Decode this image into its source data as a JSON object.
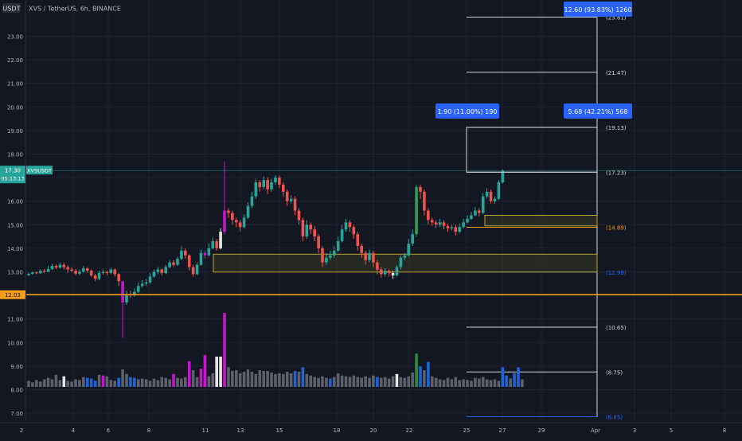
{
  "header": {
    "currency": "USDT",
    "symbol_text": "XVS / TetherUS, 6h, BINANCE"
  },
  "chart_data": {
    "type": "candlestick",
    "ylim": [
      6.5,
      24.5
    ],
    "y_ticks": [
      "23.00",
      "22.00",
      "21.00",
      "20.00",
      "19.00",
      "18.00",
      "17.00",
      "16.00",
      "15.00",
      "14.00",
      "13.00",
      "11.00",
      "10.00",
      "9.00",
      "8.00",
      "7.00"
    ],
    "x_ticks": [
      "2",
      "4",
      "6",
      "8",
      "11",
      "13",
      "15",
      "18",
      "20",
      "22",
      "25",
      "27",
      "29",
      "Apr",
      "3",
      "5",
      "8"
    ],
    "current_price": {
      "value": 17.3,
      "label": "17.30",
      "ticker": "XVSUSDT",
      "countdown": "05:13:13"
    },
    "support_line": {
      "value": 12.03,
      "label": "12.03"
    },
    "levels": [
      {
        "value": 23.81,
        "label": "(23.81)"
      },
      {
        "value": 21.47,
        "label": "(21.47)"
      },
      {
        "value": 19.13,
        "label": "(19.13)"
      },
      {
        "value": 17.23,
        "label": "(17.23)"
      },
      {
        "value": 14.89,
        "label": "(14.89)"
      },
      {
        "value": 12.99,
        "label": "(12.99)"
      },
      {
        "value": 10.65,
        "label": "(10.65)"
      },
      {
        "value": 8.75,
        "label": "(8.75)"
      },
      {
        "value": 6.85,
        "label": "(6.85)"
      }
    ],
    "zones": [
      {
        "name": "demand-zone",
        "low": 12.99,
        "high": 13.75
      },
      {
        "name": "retest-zone",
        "low": 14.95,
        "high": 15.4
      }
    ],
    "annotations": [
      {
        "text": "12.60 (93.83%) 1260"
      },
      {
        "text": "1.90 (11.00%) 190"
      },
      {
        "text": "5.68 (42.21%) 568"
      }
    ],
    "candles": [
      [
        12.86,
        12.92,
        12.95,
        12.82
      ],
      [
        12.92,
        12.98,
        13.02,
        12.88
      ],
      [
        12.98,
        12.94,
        13.02,
        12.9
      ],
      [
        12.94,
        13.05,
        13.1,
        12.92
      ],
      [
        13.05,
        13.0,
        13.12,
        12.95
      ],
      [
        13.0,
        13.12,
        13.25,
        12.98
      ],
      [
        13.12,
        13.25,
        13.35,
        13.08
      ],
      [
        13.25,
        13.18,
        13.32,
        13.12
      ],
      [
        13.18,
        13.3,
        13.4,
        13.15
      ],
      [
        13.3,
        13.2,
        13.38,
        13.1
      ],
      [
        13.2,
        13.1,
        13.28,
        12.95
      ],
      [
        13.1,
        13.05,
        13.2,
        12.98
      ],
      [
        13.05,
        12.92,
        13.12,
        12.85
      ],
      [
        12.92,
        13.0,
        13.1,
        12.85
      ],
      [
        13.0,
        13.15,
        13.25,
        12.95
      ],
      [
        13.15,
        13.05,
        13.2,
        12.95
      ],
      [
        13.05,
        12.85,
        13.1,
        12.78
      ],
      [
        12.85,
        12.7,
        12.92,
        12.6
      ],
      [
        12.7,
        12.95,
        13.05,
        12.65
      ],
      [
        12.95,
        13.0,
        13.1,
        12.88
      ],
      [
        13.0,
        12.95,
        13.05,
        12.85
      ],
      [
        12.95,
        13.1,
        13.18,
        12.9
      ],
      [
        13.1,
        12.9,
        13.15,
        12.8
      ],
      [
        12.9,
        12.6,
        12.95,
        12.4
      ],
      [
        12.6,
        11.7,
        12.62,
        10.2
      ],
      [
        11.7,
        12.05,
        12.2,
        11.6
      ],
      [
        12.05,
        12.0,
        12.2,
        11.9
      ],
      [
        12.0,
        12.15,
        12.3,
        11.95
      ],
      [
        12.15,
        12.4,
        12.55,
        12.1
      ],
      [
        12.4,
        12.5,
        12.65,
        12.35
      ],
      [
        12.5,
        12.55,
        12.7,
        12.4
      ],
      [
        12.55,
        12.8,
        12.95,
        12.5
      ],
      [
        12.8,
        13.0,
        13.1,
        12.75
      ],
      [
        13.0,
        13.1,
        13.2,
        12.9
      ],
      [
        13.1,
        12.95,
        13.15,
        12.85
      ],
      [
        12.95,
        13.2,
        13.3,
        12.9
      ],
      [
        13.2,
        13.4,
        13.5,
        13.15
      ],
      [
        13.4,
        13.3,
        13.5,
        13.2
      ],
      [
        13.3,
        13.55,
        13.65,
        13.25
      ],
      [
        13.55,
        13.9,
        14.1,
        13.5
      ],
      [
        13.9,
        13.7,
        14.0,
        13.55
      ],
      [
        13.7,
        13.2,
        13.75,
        13.05
      ],
      [
        13.2,
        12.9,
        13.3,
        12.8
      ],
      [
        12.9,
        13.3,
        13.4,
        12.85
      ],
      [
        13.3,
        13.8,
        13.95,
        13.25
      ],
      [
        13.8,
        13.7,
        13.9,
        13.55
      ],
      [
        13.7,
        14.0,
        14.2,
        13.65
      ],
      [
        14.0,
        14.3,
        14.45,
        13.95
      ],
      [
        14.3,
        14.0,
        14.4,
        13.9
      ],
      [
        14.0,
        14.7,
        14.85,
        13.95
      ],
      [
        14.7,
        15.6,
        17.7,
        14.6
      ],
      [
        15.6,
        15.5,
        15.7,
        15.3
      ],
      [
        15.5,
        15.2,
        15.6,
        15.0
      ],
      [
        15.2,
        15.1,
        15.3,
        14.9
      ],
      [
        15.1,
        14.9,
        15.2,
        14.7
      ],
      [
        14.9,
        15.3,
        15.45,
        14.85
      ],
      [
        15.3,
        15.8,
        15.95,
        15.25
      ],
      [
        15.8,
        16.2,
        16.4,
        15.7
      ],
      [
        16.2,
        16.8,
        16.95,
        16.1
      ],
      [
        16.8,
        16.6,
        16.9,
        16.4
      ],
      [
        16.6,
        16.9,
        17.05,
        16.5
      ],
      [
        16.9,
        16.5,
        17.0,
        16.3
      ],
      [
        16.5,
        16.8,
        16.95,
        16.4
      ],
      [
        16.8,
        17.0,
        17.1,
        16.7
      ],
      [
        17.0,
        16.7,
        17.1,
        16.55
      ],
      [
        16.7,
        16.4,
        16.8,
        16.2
      ],
      [
        16.4,
        16.0,
        16.5,
        15.8
      ],
      [
        16.0,
        16.1,
        16.25,
        15.9
      ],
      [
        16.1,
        15.6,
        16.2,
        15.4
      ],
      [
        15.6,
        15.2,
        15.7,
        15.0
      ],
      [
        15.2,
        14.5,
        15.3,
        14.3
      ],
      [
        14.5,
        15.0,
        15.2,
        14.4
      ],
      [
        15.0,
        14.8,
        15.1,
        14.6
      ],
      [
        14.8,
        14.5,
        14.95,
        14.3
      ],
      [
        14.5,
        14.0,
        14.6,
        13.8
      ],
      [
        14.0,
        13.4,
        14.1,
        13.2
      ],
      [
        13.4,
        13.6,
        13.8,
        13.3
      ],
      [
        13.6,
        13.7,
        13.9,
        13.5
      ],
      [
        13.7,
        13.9,
        14.1,
        13.6
      ],
      [
        13.9,
        14.3,
        14.5,
        13.85
      ],
      [
        14.3,
        14.8,
        15.0,
        14.25
      ],
      [
        14.8,
        15.1,
        15.25,
        14.7
      ],
      [
        15.1,
        14.9,
        15.2,
        14.7
      ],
      [
        14.9,
        14.6,
        15.0,
        14.4
      ],
      [
        14.6,
        14.1,
        14.7,
        13.9
      ],
      [
        14.1,
        13.8,
        14.2,
        13.6
      ],
      [
        13.8,
        13.5,
        13.9,
        13.3
      ],
      [
        13.5,
        13.8,
        13.95,
        13.4
      ],
      [
        13.8,
        13.4,
        13.9,
        13.2
      ],
      [
        13.4,
        13.1,
        13.5,
        12.9
      ],
      [
        13.1,
        12.9,
        13.2,
        12.75
      ],
      [
        12.9,
        13.05,
        13.15,
        12.8
      ],
      [
        13.05,
        12.95,
        13.1,
        12.8
      ],
      [
        12.95,
        12.85,
        13.05,
        12.7
      ],
      [
        12.85,
        13.2,
        13.3,
        12.8
      ],
      [
        13.2,
        13.6,
        13.7,
        13.1
      ],
      [
        13.6,
        13.7,
        13.8,
        13.5
      ],
      [
        13.7,
        14.2,
        14.4,
        13.65
      ],
      [
        14.2,
        14.6,
        14.8,
        14.1
      ],
      [
        14.6,
        16.6,
        16.7,
        14.5
      ],
      [
        16.6,
        16.4,
        16.7,
        16.1
      ],
      [
        16.4,
        15.6,
        16.5,
        15.4
      ],
      [
        15.6,
        15.2,
        15.7,
        15.0
      ],
      [
        15.2,
        15.1,
        15.3,
        14.95
      ],
      [
        15.1,
        15.0,
        15.2,
        14.85
      ],
      [
        15.0,
        15.1,
        15.25,
        14.9
      ],
      [
        15.1,
        14.95,
        15.2,
        14.8
      ],
      [
        14.95,
        14.85,
        15.05,
        14.7
      ],
      [
        14.85,
        14.9,
        15.0,
        14.75
      ],
      [
        14.9,
        14.7,
        15.0,
        14.55
      ],
      [
        14.7,
        14.9,
        15.05,
        14.65
      ],
      [
        14.9,
        15.1,
        15.25,
        14.85
      ],
      [
        15.1,
        15.25,
        15.4,
        15.05
      ],
      [
        15.25,
        15.4,
        15.55,
        15.2
      ],
      [
        15.4,
        15.6,
        15.75,
        15.35
      ],
      [
        15.6,
        15.5,
        15.7,
        15.35
      ],
      [
        15.5,
        16.2,
        16.35,
        15.45
      ],
      [
        16.2,
        16.4,
        16.55,
        16.1
      ],
      [
        16.4,
        16.0,
        16.5,
        15.9
      ],
      [
        16.0,
        16.1,
        16.2,
        15.9
      ],
      [
        16.1,
        16.8,
        16.9,
        16.05
      ],
      [
        16.8,
        17.3,
        17.35,
        16.75
      ]
    ],
    "volumes": [
      [
        0.8,
        "gray"
      ],
      [
        0.6,
        "gray"
      ],
      [
        0.9,
        "gray"
      ],
      [
        0.7,
        "gray"
      ],
      [
        1.0,
        "gray"
      ],
      [
        1.2,
        "gray"
      ],
      [
        1.0,
        "gray"
      ],
      [
        1.6,
        "gray"
      ],
      [
        0.9,
        "gray"
      ],
      [
        1.4,
        "white"
      ],
      [
        0.8,
        "gray"
      ],
      [
        0.7,
        "gray"
      ],
      [
        1.0,
        "gray"
      ],
      [
        0.9,
        "gray"
      ],
      [
        1.3,
        "gray"
      ],
      [
        1.2,
        "blue"
      ],
      [
        1.1,
        "blue"
      ],
      [
        0.8,
        "blue"
      ],
      [
        1.6,
        "gray"
      ],
      [
        1.5,
        "magenta"
      ],
      [
        1.4,
        "gray"
      ],
      [
        0.9,
        "gray"
      ],
      [
        0.8,
        "gray"
      ],
      [
        1.2,
        "blue"
      ],
      [
        2.3,
        "gray"
      ],
      [
        1.7,
        "gray"
      ],
      [
        1.3,
        "blue"
      ],
      [
        1.2,
        "blue"
      ],
      [
        1.0,
        "gray"
      ],
      [
        1.1,
        "gray"
      ],
      [
        1.0,
        "gray"
      ],
      [
        0.8,
        "gray"
      ],
      [
        1.1,
        "gray"
      ],
      [
        0.9,
        "gray"
      ],
      [
        1.3,
        "gray"
      ],
      [
        1.2,
        "gray"
      ],
      [
        1.0,
        "gray"
      ],
      [
        1.7,
        "magenta"
      ],
      [
        1.2,
        "gray"
      ],
      [
        1.1,
        "gray"
      ],
      [
        1.3,
        "gray"
      ],
      [
        3.4,
        "magenta"
      ],
      [
        2.2,
        "gray"
      ],
      [
        1.3,
        "gray"
      ],
      [
        2.4,
        "magenta"
      ],
      [
        4.2,
        "magenta"
      ],
      [
        1.4,
        "gray"
      ],
      [
        1.8,
        "gray"
      ],
      [
        4.0,
        "white"
      ],
      [
        4.0,
        "white"
      ],
      [
        9.8,
        "magenta"
      ],
      [
        2.6,
        "gray"
      ],
      [
        2.1,
        "gray"
      ],
      [
        2.2,
        "gray"
      ],
      [
        1.8,
        "gray"
      ],
      [
        2.0,
        "gray"
      ],
      [
        2.3,
        "gray"
      ],
      [
        2.0,
        "gray"
      ],
      [
        1.7,
        "gray"
      ],
      [
        2.2,
        "gray"
      ],
      [
        2.1,
        "gray"
      ],
      [
        2.1,
        "gray"
      ],
      [
        1.9,
        "gray"
      ],
      [
        1.7,
        "gray"
      ],
      [
        1.8,
        "gray"
      ],
      [
        1.7,
        "gray"
      ],
      [
        2.0,
        "gray"
      ],
      [
        1.8,
        "gray"
      ],
      [
        2.1,
        "blue"
      ],
      [
        2.0,
        "gray"
      ],
      [
        2.6,
        "blue"
      ],
      [
        1.7,
        "gray"
      ],
      [
        1.5,
        "gray"
      ],
      [
        1.3,
        "gray"
      ],
      [
        1.2,
        "gray"
      ],
      [
        1.4,
        "gray"
      ],
      [
        1.2,
        "gray"
      ],
      [
        1.1,
        "blue"
      ],
      [
        1.3,
        "gray"
      ],
      [
        1.8,
        "gray"
      ],
      [
        1.5,
        "gray"
      ],
      [
        1.4,
        "gray"
      ],
      [
        1.3,
        "gray"
      ],
      [
        1.5,
        "gray"
      ],
      [
        1.3,
        "gray"
      ],
      [
        1.2,
        "gray"
      ],
      [
        1.4,
        "gray"
      ],
      [
        1.2,
        "gray"
      ],
      [
        1.5,
        "gray"
      ],
      [
        1.3,
        "blue"
      ],
      [
        1.2,
        "gray"
      ],
      [
        1.3,
        "gray"
      ],
      [
        1.1,
        "gray"
      ],
      [
        1.4,
        "gray"
      ],
      [
        1.7,
        "white"
      ],
      [
        1.3,
        "gray"
      ],
      [
        1.2,
        "gray"
      ],
      [
        1.4,
        "gray"
      ],
      [
        1.9,
        "gray"
      ],
      [
        4.4,
        "green"
      ],
      [
        2.7,
        "blue"
      ],
      [
        2.2,
        "gray"
      ],
      [
        3.3,
        "blue"
      ],
      [
        1.4,
        "gray"
      ],
      [
        1.2,
        "gray"
      ],
      [
        1.0,
        "gray"
      ],
      [
        0.9,
        "gray"
      ],
      [
        1.2,
        "gray"
      ],
      [
        1.0,
        "gray"
      ],
      [
        1.3,
        "gray"
      ],
      [
        0.9,
        "gray"
      ],
      [
        1.0,
        "gray"
      ],
      [
        0.9,
        "gray"
      ],
      [
        0.8,
        "gray"
      ],
      [
        1.2,
        "gray"
      ],
      [
        1.1,
        "gray"
      ],
      [
        1.3,
        "gray"
      ],
      [
        1.0,
        "gray"
      ],
      [
        0.9,
        "gray"
      ],
      [
        1.0,
        "gray"
      ],
      [
        0.8,
        "gray"
      ],
      [
        2.6,
        "blue"
      ],
      [
        1.5,
        "blue"
      ],
      [
        1.1,
        "gray"
      ],
      [
        1.8,
        "blue"
      ],
      [
        2.6,
        "blue"
      ],
      [
        1.0,
        "gray"
      ]
    ],
    "colors": {
      "up": "#26a69a",
      "down": "#ef5350",
      "magenta": "#c218c9",
      "white": "#e6e6e6",
      "volume_gray": "#5d606b",
      "volume_blue": "#1e64d6",
      "volume_green": "#2e8b3d",
      "support": "#f59d1b",
      "zone_fill": "#b9a62d",
      "label_blue": "#2962ff",
      "grid": "#1e2230"
    }
  }
}
